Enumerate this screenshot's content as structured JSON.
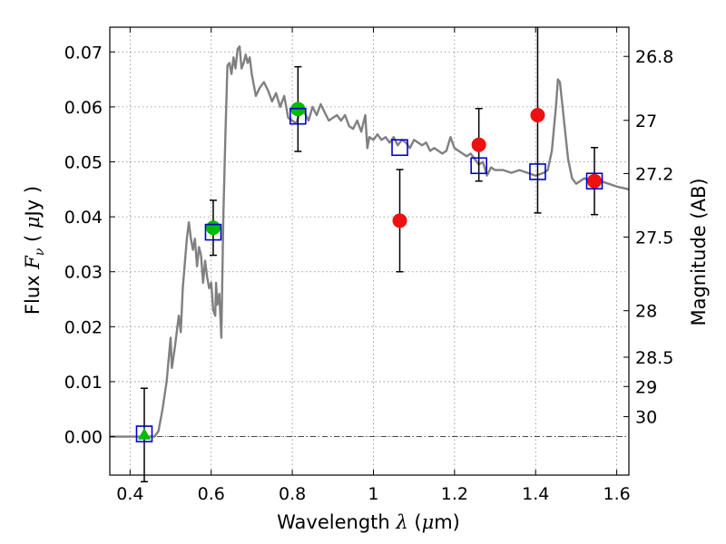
{
  "chart_data": {
    "type": "scatter",
    "title": "",
    "xlabel": "Wavelength λ (μm)",
    "ylabel": "Flux F_ν (μJy)",
    "ylabel_right": "Magnitude (AB)",
    "xlim": [
      0.35,
      1.63
    ],
    "ylim": [
      -0.007,
      0.0745
    ],
    "grid": true,
    "legend": "none",
    "x_ticks": [
      {
        "value": 0.4,
        "label": "0.4"
      },
      {
        "value": 0.6,
        "label": "0.6"
      },
      {
        "value": 0.8,
        "label": "0.8"
      },
      {
        "value": 1.0,
        "label": "1"
      },
      {
        "value": 1.2,
        "label": "1.2"
      },
      {
        "value": 1.4,
        "label": "1.4"
      },
      {
        "value": 1.6,
        "label": "1.6"
      }
    ],
    "y_ticks": [
      {
        "value": 0.0,
        "label": "0.00"
      },
      {
        "value": 0.01,
        "label": "0.01"
      },
      {
        "value": 0.02,
        "label": "0.02"
      },
      {
        "value": 0.03,
        "label": "0.03"
      },
      {
        "value": 0.04,
        "label": "0.04"
      },
      {
        "value": 0.05,
        "label": "0.05"
      },
      {
        "value": 0.06,
        "label": "0.06"
      },
      {
        "value": 0.07,
        "label": "0.07"
      }
    ],
    "right_ticks": [
      {
        "value": 26.8,
        "label": "26.8"
      },
      {
        "value": 27.0,
        "label": "27"
      },
      {
        "value": 27.2,
        "label": "27.2"
      },
      {
        "value": 27.5,
        "label": "27.5"
      },
      {
        "value": 28.0,
        "label": "28"
      },
      {
        "value": 28.5,
        "label": "28.5"
      },
      {
        "value": 29.0,
        "label": "29"
      },
      {
        "value": 30.0,
        "label": "30"
      }
    ],
    "colors": {
      "model": "#808080",
      "model_points": "#0000cc",
      "green_points": "#00bb00",
      "red_points": "#ee1111",
      "errorbar": "#000000",
      "grid": "#888888"
    },
    "model_spectrum": [
      [
        0.35,
        0.0
      ],
      [
        0.45,
        0.0
      ],
      [
        0.46,
        0.0
      ],
      [
        0.47,
        0.001
      ],
      [
        0.48,
        0.005
      ],
      [
        0.49,
        0.01
      ],
      [
        0.495,
        0.014
      ],
      [
        0.5,
        0.018
      ],
      [
        0.503,
        0.0125
      ],
      [
        0.51,
        0.016
      ],
      [
        0.52,
        0.022
      ],
      [
        0.525,
        0.019
      ],
      [
        0.53,
        0.027
      ],
      [
        0.54,
        0.036
      ],
      [
        0.545,
        0.039
      ],
      [
        0.55,
        0.036
      ],
      [
        0.555,
        0.034
      ],
      [
        0.56,
        0.036
      ],
      [
        0.565,
        0.031
      ],
      [
        0.57,
        0.0345
      ],
      [
        0.575,
        0.033
      ],
      [
        0.58,
        0.028
      ],
      [
        0.585,
        0.032
      ],
      [
        0.59,
        0.029
      ],
      [
        0.595,
        0.027
      ],
      [
        0.6,
        0.028
      ],
      [
        0.605,
        0.023
      ],
      [
        0.61,
        0.022
      ],
      [
        0.612,
        0.028
      ],
      [
        0.615,
        0.024
      ],
      [
        0.62,
        0.026
      ],
      [
        0.625,
        0.018
      ],
      [
        0.63,
        0.04
      ],
      [
        0.635,
        0.055
      ],
      [
        0.64,
        0.0675
      ],
      [
        0.645,
        0.068
      ],
      [
        0.65,
        0.066
      ],
      [
        0.655,
        0.069
      ],
      [
        0.66,
        0.067
      ],
      [
        0.665,
        0.0705
      ],
      [
        0.67,
        0.071
      ],
      [
        0.675,
        0.067
      ],
      [
        0.68,
        0.068
      ],
      [
        0.685,
        0.0695
      ],
      [
        0.69,
        0.068
      ],
      [
        0.695,
        0.069
      ],
      [
        0.7,
        0.066
      ],
      [
        0.71,
        0.062
      ],
      [
        0.72,
        0.0635
      ],
      [
        0.73,
        0.0645
      ],
      [
        0.74,
        0.063
      ],
      [
        0.75,
        0.061
      ],
      [
        0.76,
        0.0625
      ],
      [
        0.77,
        0.06
      ],
      [
        0.78,
        0.062
      ],
      [
        0.79,
        0.058
      ],
      [
        0.8,
        0.0575
      ],
      [
        0.81,
        0.057
      ],
      [
        0.82,
        0.0595
      ],
      [
        0.83,
        0.059
      ],
      [
        0.84,
        0.0575
      ],
      [
        0.85,
        0.06
      ],
      [
        0.86,
        0.0585
      ],
      [
        0.87,
        0.0605
      ],
      [
        0.88,
        0.059
      ],
      [
        0.89,
        0.0575
      ],
      [
        0.9,
        0.058
      ],
      [
        0.91,
        0.0585
      ],
      [
        0.92,
        0.0575
      ],
      [
        0.93,
        0.0585
      ],
      [
        0.94,
        0.0565
      ],
      [
        0.95,
        0.056
      ],
      [
        0.96,
        0.0575
      ],
      [
        0.97,
        0.0555
      ],
      [
        0.98,
        0.0585
      ],
      [
        0.985,
        0.0525
      ],
      [
        0.99,
        0.0545
      ],
      [
        1.0,
        0.054
      ],
      [
        1.01,
        0.055
      ],
      [
        1.02,
        0.054
      ],
      [
        1.03,
        0.0545
      ],
      [
        1.04,
        0.0535
      ],
      [
        1.05,
        0.0545
      ],
      [
        1.06,
        0.053
      ],
      [
        1.07,
        0.054
      ],
      [
        1.08,
        0.0535
      ],
      [
        1.09,
        0.0525
      ],
      [
        1.1,
        0.054
      ],
      [
        1.11,
        0.0535
      ],
      [
        1.12,
        0.053
      ],
      [
        1.13,
        0.0535
      ],
      [
        1.14,
        0.052
      ],
      [
        1.15,
        0.0525
      ],
      [
        1.16,
        0.052
      ],
      [
        1.17,
        0.0515
      ],
      [
        1.18,
        0.052
      ],
      [
        1.19,
        0.0545
      ],
      [
        1.2,
        0.0525
      ],
      [
        1.21,
        0.052
      ],
      [
        1.22,
        0.0515
      ],
      [
        1.23,
        0.051
      ],
      [
        1.24,
        0.0515
      ],
      [
        1.25,
        0.0505
      ],
      [
        1.26,
        0.0495
      ],
      [
        1.27,
        0.05
      ],
      [
        1.28,
        0.0475
      ],
      [
        1.29,
        0.049
      ],
      [
        1.3,
        0.0485
      ],
      [
        1.32,
        0.0485
      ],
      [
        1.34,
        0.048
      ],
      [
        1.36,
        0.0485
      ],
      [
        1.38,
        0.048
      ],
      [
        1.4,
        0.0475
      ],
      [
        1.42,
        0.048
      ],
      [
        1.43,
        0.0485
      ],
      [
        1.44,
        0.052
      ],
      [
        1.45,
        0.06
      ],
      [
        1.455,
        0.065
      ],
      [
        1.46,
        0.0645
      ],
      [
        1.47,
        0.0575
      ],
      [
        1.48,
        0.0505
      ],
      [
        1.49,
        0.047
      ],
      [
        1.5,
        0.046
      ],
      [
        1.52,
        0.047
      ],
      [
        1.54,
        0.0465
      ],
      [
        1.56,
        0.0465
      ],
      [
        1.58,
        0.046
      ],
      [
        1.6,
        0.0455
      ],
      [
        1.63,
        0.045
      ]
    ],
    "model_photometry": [
      {
        "x": 0.435,
        "y": 0.0005
      },
      {
        "x": 0.605,
        "y": 0.0372
      },
      {
        "x": 0.814,
        "y": 0.0583
      },
      {
        "x": 1.065,
        "y": 0.0526
      },
      {
        "x": 1.26,
        "y": 0.0493
      },
      {
        "x": 1.405,
        "y": 0.0482
      },
      {
        "x": 1.545,
        "y": 0.0465
      }
    ],
    "observed_green": [
      {
        "x": 0.435,
        "y": 0.0003,
        "err": 0.0085,
        "marker": "triangle"
      },
      {
        "x": 0.605,
        "y": 0.038,
        "err": 0.005,
        "marker": "circle"
      },
      {
        "x": 0.814,
        "y": 0.0596,
        "err": 0.0077,
        "marker": "circle"
      }
    ],
    "observed_red": [
      {
        "x": 1.065,
        "y": 0.0393,
        "err": 0.0093
      },
      {
        "x": 1.26,
        "y": 0.0531,
        "err": 0.0066
      },
      {
        "x": 1.405,
        "y": 0.0585,
        "err": 0.0178
      },
      {
        "x": 1.545,
        "y": 0.0465,
        "err": 0.0061
      }
    ]
  }
}
